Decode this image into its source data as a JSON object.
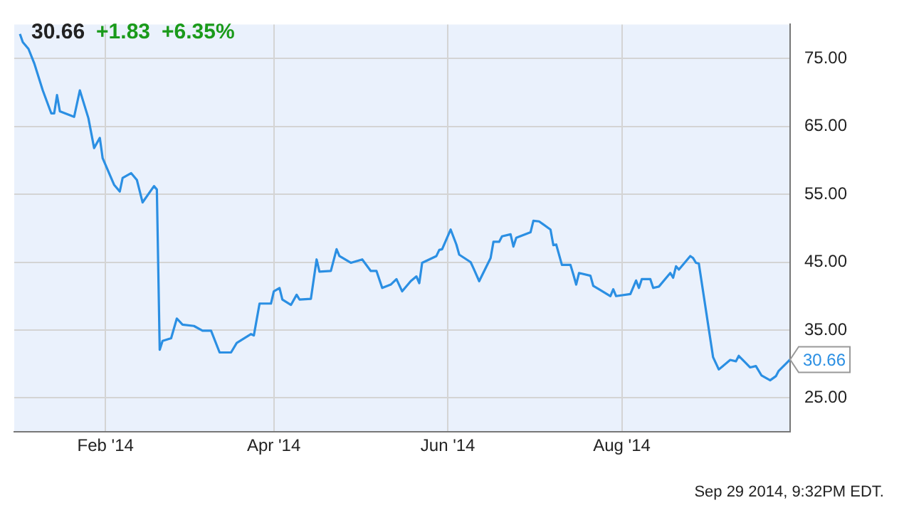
{
  "chart_data": {
    "type": "line",
    "title": "30.66 +1.83 +6.35%",
    "annotations": [
      "Sep 29 2014, 9:32PM EDT."
    ],
    "x": [
      "2014-01-02",
      "2014-01-03",
      "2014-01-05",
      "2014-01-07",
      "2014-01-10",
      "2014-01-13",
      "2014-01-14",
      "2014-01-15",
      "2014-01-16",
      "2014-01-21",
      "2014-01-23",
      "2014-01-26",
      "2014-01-28",
      "2014-01-30",
      "2014-01-31",
      "2014-02-04",
      "2014-02-06",
      "2014-02-07",
      "2014-02-10",
      "2014-02-12",
      "2014-02-14",
      "2014-02-18",
      "2014-02-19",
      "2014-02-20",
      "2014-02-21",
      "2014-02-24",
      "2014-02-26",
      "2014-02-28",
      "2014-03-04",
      "2014-03-07",
      "2014-03-10",
      "2014-03-13",
      "2014-03-17",
      "2014-03-19",
      "2014-03-24",
      "2014-03-25",
      "2014-03-27",
      "2014-03-31",
      "2014-04-01",
      "2014-04-03",
      "2014-04-04",
      "2014-04-07",
      "2014-04-09",
      "2014-04-10",
      "2014-04-14",
      "2014-04-16",
      "2014-04-17",
      "2014-04-21",
      "2014-04-23",
      "2014-04-24",
      "2014-04-28",
      "2014-05-02",
      "2014-05-05",
      "2014-05-07",
      "2014-05-09",
      "2014-05-12",
      "2014-05-14",
      "2014-05-16",
      "2014-05-19",
      "2014-05-21",
      "2014-05-22",
      "2014-05-23",
      "2014-05-28",
      "2014-05-29",
      "2014-05-30",
      "2014-06-02",
      "2014-06-04",
      "2014-06-05",
      "2014-06-09",
      "2014-06-10",
      "2014-06-12",
      "2014-06-16",
      "2014-06-17",
      "2014-06-19",
      "2014-06-20",
      "2014-06-23",
      "2014-06-24",
      "2014-06-25",
      "2014-06-30",
      "2014-07-01",
      "2014-07-03",
      "2014-07-07",
      "2014-07-08",
      "2014-07-09",
      "2014-07-11",
      "2014-07-14",
      "2014-07-15",
      "2014-07-16",
      "2014-07-17",
      "2014-07-21",
      "2014-07-22",
      "2014-07-24",
      "2014-07-28",
      "2014-07-29",
      "2014-07-30",
      "2014-08-04",
      "2014-08-06",
      "2014-08-07",
      "2014-08-08",
      "2014-08-11",
      "2014-08-12",
      "2014-08-14",
      "2014-08-18",
      "2014-08-19",
      "2014-08-20",
      "2014-08-21",
      "2014-08-25",
      "2014-08-26",
      "2014-08-27",
      "2014-08-28",
      "2014-09-02",
      "2014-09-04",
      "2014-09-08",
      "2014-09-10",
      "2014-09-11",
      "2014-09-15",
      "2014-09-17",
      "2014-09-19",
      "2014-09-22",
      "2014-09-24",
      "2014-09-25",
      "2014-09-29"
    ],
    "series": [
      {
        "color": "#2b8fe3",
        "values": [
          78.6,
          77.4,
          76.4,
          74.3,
          70.3,
          66.9,
          66.9,
          69.6,
          67.2,
          66.4,
          70.3,
          66.2,
          61.8,
          63.3,
          60.3,
          56.4,
          55.4,
          57.4,
          58.1,
          57.1,
          53.8,
          56.2,
          55.7,
          32.1,
          33.4,
          33.8,
          36.7,
          35.8,
          35.6,
          34.9,
          34.9,
          31.7,
          31.7,
          33.1,
          34.4,
          34.2,
          38.9,
          38.9,
          40.7,
          41.2,
          39.5,
          38.7,
          40.2,
          39.5,
          39.6,
          45.4,
          43.6,
          43.7,
          46.9,
          45.9,
          44.9,
          45.4,
          43.7,
          43.7,
          41.2,
          41.7,
          42.5,
          40.7,
          42.2,
          42.9,
          41.9,
          44.9,
          45.9,
          46.8,
          46.9,
          49.8,
          47.6,
          46.1,
          45.0,
          44.1,
          42.2,
          45.6,
          48.0,
          48.0,
          48.8,
          49.1,
          47.3,
          48.6,
          49.4,
          51.1,
          51.0,
          49.8,
          47.5,
          47.6,
          44.6,
          44.6,
          43.2,
          41.7,
          43.4,
          43.0,
          41.5,
          41.0,
          40.0,
          41.0,
          40.0,
          40.3,
          42.3,
          41.2,
          42.5,
          42.5,
          41.2,
          41.4,
          43.4,
          42.7,
          44.4,
          43.9,
          45.9,
          45.6,
          44.9,
          44.8,
          31.0,
          29.2,
          30.6,
          30.4,
          31.2,
          29.5,
          29.7,
          28.3,
          27.6,
          28.2,
          29.0,
          30.66
        ],
        "value_labels": [
          null,
          null,
          null,
          null,
          null,
          null,
          null,
          null,
          null,
          null,
          null,
          null,
          null,
          null,
          null,
          null,
          null,
          null,
          null,
          null,
          null,
          null,
          null,
          null,
          null,
          null,
          null,
          null,
          null,
          null,
          null,
          null,
          null,
          null,
          null,
          null,
          null,
          null,
          null,
          null,
          null,
          null,
          null,
          null,
          null,
          null,
          null,
          null,
          null,
          null,
          null,
          null,
          null,
          null,
          null,
          null,
          null,
          null,
          null,
          null,
          null,
          null,
          null,
          null,
          null,
          null,
          null,
          null,
          null,
          null,
          null,
          null,
          null,
          null,
          null,
          null,
          null,
          null,
          null,
          null,
          null,
          null,
          null,
          null,
          null,
          null,
          null,
          null,
          null,
          null,
          null,
          null,
          null,
          null,
          null,
          null,
          null,
          null,
          null,
          null,
          null,
          null,
          null,
          null,
          null,
          null,
          null,
          null,
          null,
          null,
          null,
          null,
          null,
          null,
          null,
          null,
          null,
          null,
          null,
          null,
          null,
          "30.66"
        ]
      }
    ],
    "xlim": [
      "2013-12-31",
      "2014-09-29"
    ],
    "xticks": [
      {
        "value": "2014-02-01",
        "label": "Feb '14"
      },
      {
        "value": "2014-04-01",
        "label": "Apr '14"
      },
      {
        "value": "2014-06-01",
        "label": "Jun '14"
      },
      {
        "value": "2014-08-01",
        "label": "Aug '14"
      }
    ],
    "ylim": [
      20,
      80
    ],
    "yticks": [
      {
        "value": 25,
        "label": "25.00"
      },
      {
        "value": 35,
        "label": "35.00"
      },
      {
        "value": 45,
        "label": "45.00"
      },
      {
        "value": 55,
        "label": "55.00"
      },
      {
        "value": 65,
        "label": "65.00"
      },
      {
        "value": 75,
        "label": "75.00"
      }
    ],
    "grid": true,
    "legend": false,
    "marker": "none",
    "line_style": "solid"
  }
}
